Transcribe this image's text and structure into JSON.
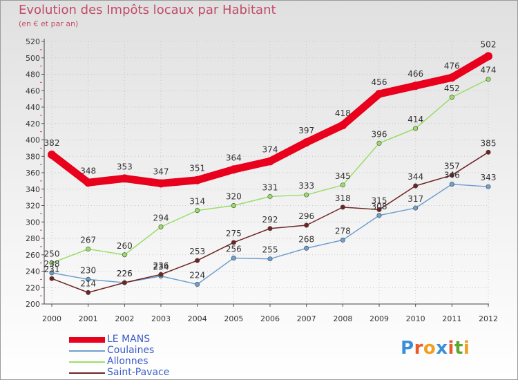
{
  "title": "Evolution des Impôts locaux par Habitant",
  "subtitle": "(en € et par an)",
  "logo": {
    "letters": [
      "P",
      "r",
      "o",
      "x",
      "i",
      "t",
      "i"
    ],
    "colors": [
      "#3b8fd8",
      "#e85a2a",
      "#f0a020",
      "#3b8fd8",
      "#e85a2a",
      "#5aa832",
      "#f0a020"
    ]
  },
  "chart_data": {
    "type": "line",
    "x": [
      2000,
      2001,
      2002,
      2003,
      2004,
      2005,
      2006,
      2007,
      2008,
      2009,
      2010,
      2011,
      2012
    ],
    "x_tick_labels": [
      "2000",
      "2001",
      "2002",
      "2003",
      "2004",
      "2005",
      "2006",
      "2007",
      "2008",
      "2009",
      "2010",
      "2011",
      "2012"
    ],
    "ylim": [
      200,
      520
    ],
    "y_ticks": [
      200,
      220,
      240,
      260,
      280,
      300,
      320,
      340,
      360,
      380,
      400,
      420,
      440,
      460,
      480,
      500,
      520
    ],
    "y_tick_labels": [
      "200",
      "220",
      "240",
      "260",
      "280",
      "300",
      "320",
      "340",
      "360",
      "380",
      "400",
      "420",
      "440",
      "460",
      "480",
      "500",
      "520"
    ],
    "grid": true,
    "legend_position": "bottom-left",
    "series": [
      {
        "name": "LE MANS",
        "color": "#e8001c",
        "values": [
          382,
          348,
          353,
          347,
          351,
          364,
          374,
          397,
          418,
          456,
          466,
          476,
          502
        ],
        "labels": [
          "382",
          "348",
          "353",
          "347",
          "351",
          "364",
          "374",
          "397",
          "418",
          "456",
          "466",
          "476",
          "502"
        ]
      },
      {
        "name": "Coulaines",
        "color": "#6f9fd0",
        "values": [
          238,
          230,
          226,
          234,
          224,
          256,
          255,
          268,
          278,
          308,
          317,
          346,
          343
        ],
        "labels": [
          "238",
          "230",
          "226",
          "234",
          "224",
          "256",
          "255",
          "268",
          "278",
          "308",
          "317",
          "346",
          "343"
        ]
      },
      {
        "name": "Allonnes",
        "color": "#99dd66",
        "values": [
          250,
          267,
          260,
          294,
          314,
          320,
          331,
          333,
          345,
          396,
          414,
          452,
          474
        ],
        "labels": [
          "250",
          "267",
          "260",
          "294",
          "314",
          "320",
          "331",
          "333",
          "345",
          "396",
          "414",
          "452",
          "474"
        ]
      },
      {
        "name": "Saint-Pavace",
        "color": "#6e2424",
        "values": [
          231,
          214,
          226,
          236,
          253,
          275,
          292,
          296,
          318,
          315,
          344,
          357,
          385
        ],
        "labels": [
          "231",
          "214",
          "226",
          "236",
          "253",
          "275",
          "292",
          "296",
          "318",
          "315",
          "344",
          "357",
          "385"
        ]
      }
    ]
  }
}
